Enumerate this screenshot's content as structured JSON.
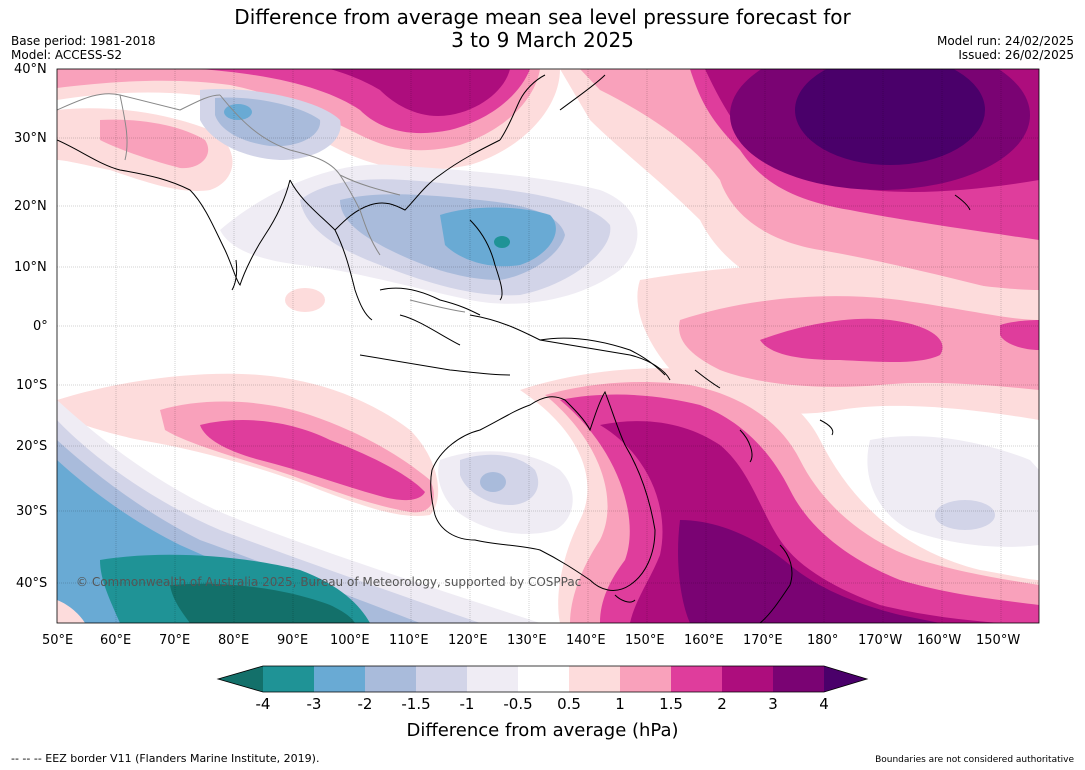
{
  "title": {
    "line1": "Difference from average mean sea level pressure forecast for",
    "line2": "3 to 9 March 2025"
  },
  "meta": {
    "base_period": "Base period: 1981-2018",
    "model": "Model: ACCESS-S2",
    "model_run": "Model run: 24/02/2025",
    "issued": "Issued: 26/02/2025"
  },
  "map": {
    "lat_labels": [
      "40°N",
      "30°N",
      "20°N",
      "10°N",
      "0°",
      "10°S",
      "20°S",
      "30°S",
      "40°S"
    ],
    "lon_labels": [
      "50°E",
      "60°E",
      "70°E",
      "80°E",
      "90°E",
      "100°E",
      "110°E",
      "120°E",
      "130°E",
      "140°E",
      "150°E",
      "160°E",
      "170°E",
      "180°",
      "170°W",
      "160°W",
      "150°W"
    ],
    "copyright": "© Commonwealth of Australia 2025, Bureau of Meteorology, supported by COSPPac"
  },
  "colorbar": {
    "tick_labels": [
      "-4",
      "-3",
      "-2",
      "-1.5",
      "-1",
      "-0.5",
      "0.5",
      "1",
      "1.5",
      "2",
      "3",
      "4"
    ],
    "colors": [
      "#13706a",
      "#1f9396",
      "#69aad4",
      "#a9bbdb",
      "#d2d4e8",
      "#efecf4",
      "#ffffff",
      "#fddcdc",
      "#f9a1bb",
      "#df3d9c",
      "#ad0d7d",
      "#7a0373",
      "#4a006a"
    ],
    "label": "Difference from average (hPa)"
  },
  "footer": {
    "eez": "--  --  -- EEZ border V11 (Flanders Marine Institute, 2019).",
    "boundaries": "Boundaries are not considered authoritative"
  }
}
